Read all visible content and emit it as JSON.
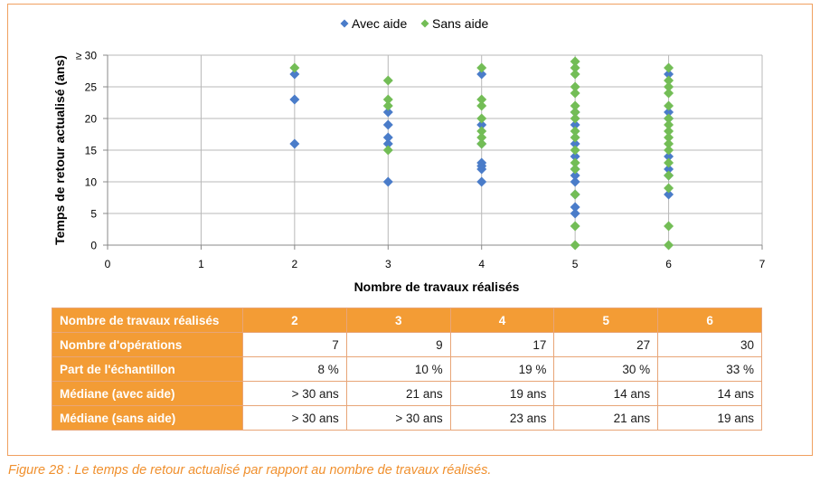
{
  "chart_data": {
    "type": "scatter",
    "title": "",
    "xlabel": "Nombre de travaux réalisés",
    "ylabel": "Temps de retour actualisé (ans)",
    "xlim": [
      0,
      7
    ],
    "ylim": [
      0,
      30
    ],
    "x_ticks": [
      "0",
      "1",
      "2",
      "3",
      "4",
      "5",
      "6",
      "7"
    ],
    "y_ticks": [
      "0",
      "5",
      "10",
      "15",
      "20",
      "25",
      "≥ 30"
    ],
    "grid": true,
    "legend_position": "top-center",
    "series": [
      {
        "name": "Avec aide",
        "color": "#4a7cc9",
        "marker": "diamond",
        "points": [
          [
            2,
            27
          ],
          [
            2,
            23
          ],
          [
            2,
            16
          ],
          [
            3,
            21
          ],
          [
            3,
            19
          ],
          [
            3,
            17
          ],
          [
            3,
            16
          ],
          [
            3,
            10
          ],
          [
            4,
            27
          ],
          [
            4,
            19
          ],
          [
            4,
            16
          ],
          [
            4,
            13
          ],
          [
            4,
            12.5
          ],
          [
            4,
            12
          ],
          [
            4,
            10
          ],
          [
            5,
            21
          ],
          [
            5,
            19
          ],
          [
            5,
            16
          ],
          [
            5,
            14
          ],
          [
            5,
            12
          ],
          [
            5,
            11
          ],
          [
            5,
            10
          ],
          [
            5,
            8
          ],
          [
            5,
            6
          ],
          [
            5,
            5
          ],
          [
            6,
            27
          ],
          [
            6,
            21
          ],
          [
            6,
            20
          ],
          [
            6,
            14
          ],
          [
            6,
            12
          ],
          [
            6,
            11
          ],
          [
            6,
            8
          ]
        ]
      },
      {
        "name": "Sans aide",
        "color": "#73bd56",
        "marker": "diamond",
        "points": [
          [
            2,
            28
          ],
          [
            3,
            26
          ],
          [
            3,
            23
          ],
          [
            3,
            22
          ],
          [
            3,
            15
          ],
          [
            4,
            28
          ],
          [
            4,
            23
          ],
          [
            4,
            22
          ],
          [
            4,
            20
          ],
          [
            4,
            18
          ],
          [
            4,
            17
          ],
          [
            4,
            16
          ],
          [
            5,
            29
          ],
          [
            5,
            28
          ],
          [
            5,
            27
          ],
          [
            5,
            25
          ],
          [
            5,
            24
          ],
          [
            5,
            22
          ],
          [
            5,
            21
          ],
          [
            5,
            20
          ],
          [
            5,
            18
          ],
          [
            5,
            17
          ],
          [
            5,
            15
          ],
          [
            5,
            13
          ],
          [
            5,
            12
          ],
          [
            5,
            8
          ],
          [
            5,
            3
          ],
          [
            5,
            0
          ],
          [
            6,
            28
          ],
          [
            6,
            26
          ],
          [
            6,
            25
          ],
          [
            6,
            24
          ],
          [
            6,
            22
          ],
          [
            6,
            20
          ],
          [
            6,
            19
          ],
          [
            6,
            18
          ],
          [
            6,
            17
          ],
          [
            6,
            16
          ],
          [
            6,
            15
          ],
          [
            6,
            13
          ],
          [
            6,
            11
          ],
          [
            6,
            9
          ],
          [
            6,
            3
          ],
          [
            6,
            0
          ]
        ]
      }
    ]
  },
  "table": {
    "header_label": "Nombre de travaux réalisés",
    "columns": [
      "2",
      "3",
      "4",
      "5",
      "6"
    ],
    "rows": [
      {
        "label": "Nombre d'opérations",
        "values": [
          "7",
          "9",
          "17",
          "27",
          "30"
        ]
      },
      {
        "label": "Part de l'échantillon",
        "values": [
          "8 %",
          "10 %",
          "19 %",
          "30 %",
          "33 %"
        ]
      },
      {
        "label": "Médiane (avec aide)",
        "values": [
          "> 30 ans",
          "21 ans",
          "19 ans",
          "14 ans",
          "14 ans"
        ]
      },
      {
        "label": "Médiane (sans aide)",
        "values": [
          "> 30 ans",
          "> 30 ans",
          "23 ans",
          "21 ans",
          "19 ans"
        ]
      }
    ]
  },
  "caption": "Figure 28 : Le temps de retour actualisé par rapport au nombre de travaux réalisés."
}
